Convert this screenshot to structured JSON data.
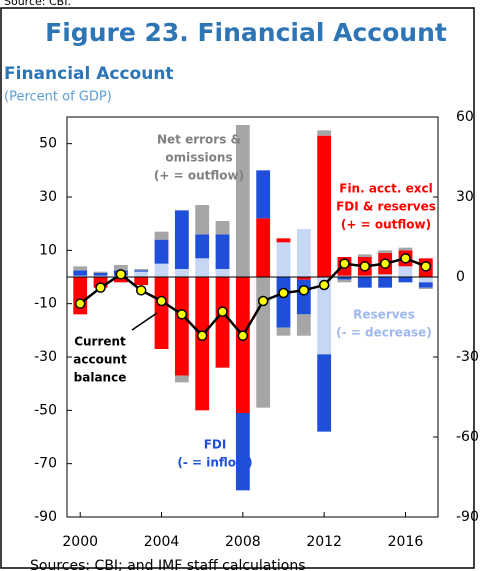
{
  "source_top": "Source: CBI.",
  "chart_data": {
    "type": "bar",
    "figure_title": "Figure 23. Financial Account",
    "title": "Financial Account",
    "subtitle": "(Percent of GDP)",
    "x": [
      2000,
      2001,
      2002,
      2003,
      2004,
      2005,
      2006,
      2007,
      2008,
      2009,
      2010,
      2011,
      2012,
      2013,
      2014,
      2015,
      2016,
      2017
    ],
    "xlim": [
      1999.35,
      2017.6
    ],
    "xticks": [
      2000,
      2004,
      2008,
      2012,
      2016
    ],
    "ylim": [
      -90,
      60
    ],
    "yticks": [
      50,
      30,
      10,
      -10,
      -30,
      -50,
      -70,
      -90
    ],
    "y2lim": [
      -90,
      60
    ],
    "y2ticks": [
      60,
      30,
      0,
      -30,
      -60,
      -90
    ],
    "series": [
      {
        "color": "#c6d7f5",
        "values": [
          0.5,
          0.5,
          0.5,
          2,
          5,
          3,
          7,
          3,
          0,
          0,
          13,
          18,
          -29,
          0.5,
          0.5,
          1,
          4,
          -2
        ]
      },
      {
        "color": "#ff0000",
        "values": [
          -14,
          -4,
          -2,
          -3,
          -27,
          -37,
          -50,
          -34,
          -51,
          22,
          1.5,
          -1,
          53,
          7,
          7,
          8,
          6,
          7
        ]
      },
      {
        "color": "#1f4fd8",
        "values": [
          2,
          1,
          2,
          0.5,
          9,
          22,
          9,
          13,
          -29,
          18,
          -19,
          -13,
          -29,
          -1,
          -4,
          -4,
          -2,
          -2
        ]
      },
      {
        "color": "#a6a6a6",
        "values": [
          1.5,
          0.5,
          2,
          0.5,
          3,
          -2.5,
          11,
          5,
          57,
          -49,
          -3,
          -8,
          2,
          -1,
          1,
          1,
          1,
          -0.5
        ]
      }
    ],
    "line": {
      "color": "#000000",
      "marker_color": "#ffff00",
      "values": [
        -10,
        -4,
        1,
        -5,
        -9,
        -14,
        -22,
        -13,
        -22,
        -9,
        -6,
        -5,
        -3,
        5,
        4,
        5,
        7,
        4
      ]
    },
    "annotations": [
      {
        "lines": [
          "Net errors &",
          "omissions",
          "(+ = outflow)"
        ],
        "color": "#808080"
      },
      {
        "lines": [
          "Fin. acct. excl",
          "FDI & reserves",
          "(+ = outflow)"
        ],
        "color": "#ff0000"
      },
      {
        "lines": [
          "Reserves",
          "(- = decrease)"
        ],
        "color": "#9db8ee"
      },
      {
        "lines": [
          "FDI",
          "(- = inflow)"
        ],
        "color": "#1f4fd8"
      },
      {
        "lines": [
          "Current",
          "account",
          "balance"
        ],
        "color": "#000000"
      }
    ],
    "source": "Sources: CBI; and IMF staff calculations"
  }
}
